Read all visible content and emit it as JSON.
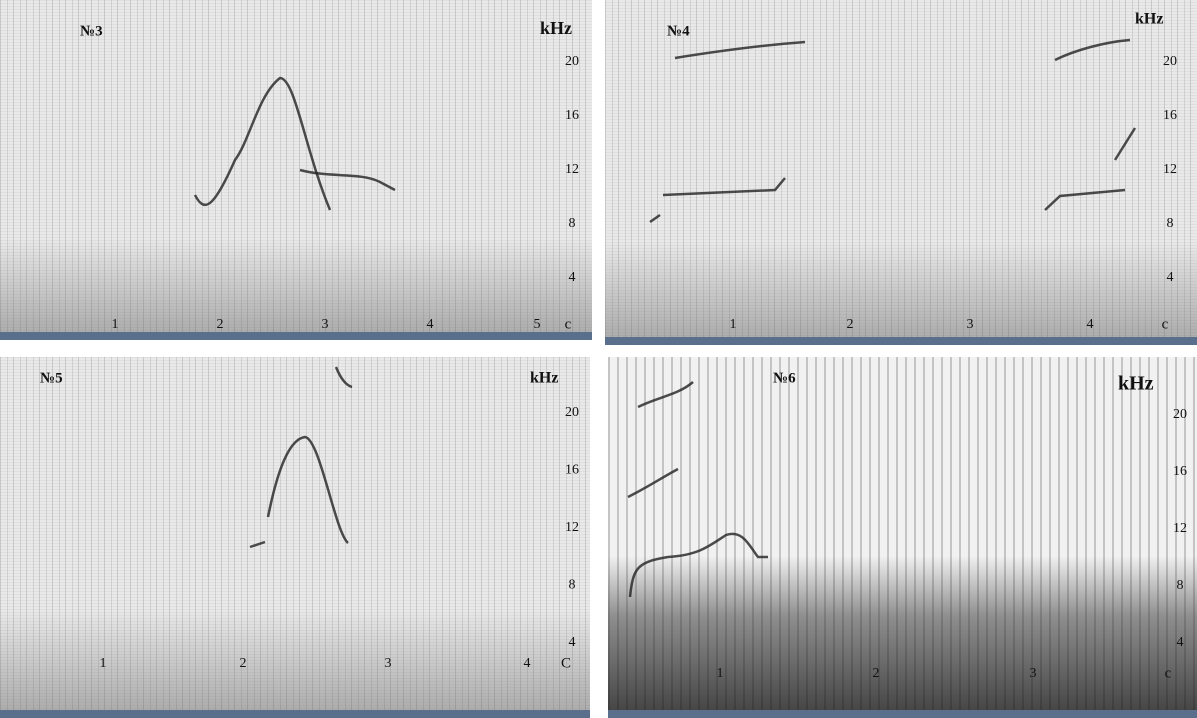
{
  "panels": [
    {
      "label": "№3",
      "unit": "kHz",
      "yticks": [
        20,
        16,
        12,
        8,
        4
      ],
      "segments": [
        "1",
        "2",
        "3",
        "4",
        "5"
      ],
      "end": "c"
    },
    {
      "label": "№4",
      "unit": "kHz",
      "yticks": [
        20,
        16,
        12,
        8,
        4
      ],
      "segments": [
        "1",
        "2",
        "3",
        "4"
      ],
      "end": "c"
    },
    {
      "label": "№5",
      "unit": "kHz",
      "yticks": [
        20,
        16,
        12,
        8,
        4
      ],
      "segments": [
        "1",
        "2",
        "3",
        "4"
      ],
      "end": "C"
    },
    {
      "label": "№6",
      "unit": "kHz",
      "yticks": [
        20,
        16,
        12,
        8,
        4
      ],
      "segments": [
        "1",
        "2",
        "3"
      ],
      "end": "c"
    }
  ]
}
